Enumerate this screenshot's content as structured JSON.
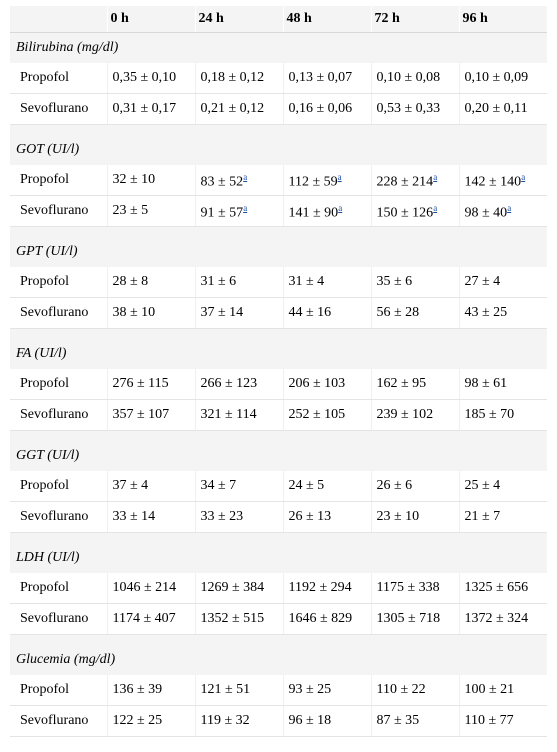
{
  "headers": [
    "",
    "0 h",
    "24 h",
    "48 h",
    "72 h",
    "96 h"
  ],
  "sections": [
    {
      "title": "Bilirubina (mg/dl)",
      "rows": [
        {
          "label": "Propofol",
          "values": [
            "0,35 ± 0,10",
            "0,18 ± 0,12",
            "0,13 ± 0,07",
            "0,10 ± 0,08",
            "0,10 ± 0,09"
          ],
          "notes": [
            "",
            "",
            "",
            "",
            ""
          ]
        },
        {
          "label": "Sevoflurano",
          "values": [
            "0,31 ± 0,17",
            "0,21 ± 0,12",
            "0,16 ± 0,06",
            "0,53 ± 0,33",
            "0,20 ± 0,11"
          ],
          "notes": [
            "",
            "",
            "",
            "",
            ""
          ]
        }
      ]
    },
    {
      "title": "GOT (UI/l)",
      "rows": [
        {
          "label": "Propofol",
          "values": [
            "32 ± 10",
            "83 ± 52",
            "112 ± 59",
            "228 ± 214",
            "142 ± 140"
          ],
          "notes": [
            "",
            "a",
            "a",
            "a",
            "a"
          ]
        },
        {
          "label": "Sevoflurano",
          "values": [
            "23 ± 5",
            "91 ± 57",
            "141 ± 90",
            "150 ± 126",
            "98 ± 40"
          ],
          "notes": [
            "",
            "a",
            "a",
            "a",
            "a"
          ]
        }
      ]
    },
    {
      "title": "GPT (UI/l)",
      "rows": [
        {
          "label": "Propofol",
          "values": [
            "28 ± 8",
            "31 ± 6",
            "31 ± 4",
            "35 ± 6",
            "27 ± 4"
          ],
          "notes": [
            "",
            "",
            "",
            "",
            ""
          ]
        },
        {
          "label": "Sevoflurano",
          "values": [
            "38 ± 10",
            "37 ± 14",
            "44 ± 16",
            "56 ± 28",
            "43 ± 25"
          ],
          "notes": [
            "",
            "",
            "",
            "",
            ""
          ]
        }
      ]
    },
    {
      "title": "FA (UI/l)",
      "rows": [
        {
          "label": "Propofol",
          "values": [
            "276 ± 115",
            "266 ± 123",
            "206 ± 103",
            "162 ± 95",
            "98 ± 61"
          ],
          "notes": [
            "",
            "",
            "",
            "",
            ""
          ]
        },
        {
          "label": "Sevoflurano",
          "values": [
            "357 ± 107",
            "321 ± 114",
            "252 ± 105",
            "239 ± 102",
            "185 ± 70"
          ],
          "notes": [
            "",
            "",
            "",
            "",
            ""
          ]
        }
      ]
    },
    {
      "title": "GGT (UI/l)",
      "rows": [
        {
          "label": "Propofol",
          "values": [
            "37 ± 4",
            "34 ± 7",
            "24 ± 5",
            "26 ± 6",
            "25 ± 4"
          ],
          "notes": [
            "",
            "",
            "",
            "",
            ""
          ]
        },
        {
          "label": "Sevoflurano",
          "values": [
            "33 ± 14",
            "33 ± 23",
            "26 ± 13",
            "23 ± 10",
            "21 ± 7"
          ],
          "notes": [
            "",
            "",
            "",
            "",
            ""
          ]
        }
      ]
    },
    {
      "title": "LDH (UI/l)",
      "rows": [
        {
          "label": "Propofol",
          "values": [
            "1046 ± 214",
            "1269 ± 384",
            "1192 ± 294",
            "1175 ± 338",
            "1325 ± 656"
          ],
          "notes": [
            "",
            "",
            "",
            "",
            ""
          ]
        },
        {
          "label": "Sevoflurano",
          "values": [
            "1174 ± 407",
            "1352 ± 515",
            "1646 ± 829",
            "1305 ± 718",
            "1372 ± 324"
          ],
          "notes": [
            "",
            "",
            "",
            "",
            ""
          ]
        }
      ]
    },
    {
      "title": "Glucemia (mg/dl)",
      "rows": [
        {
          "label": "Propofol",
          "values": [
            "136 ± 39",
            "121 ± 51",
            "93 ± 25",
            "110 ± 22",
            "100 ± 21"
          ],
          "notes": [
            "",
            "",
            "",
            "",
            ""
          ]
        },
        {
          "label": "Sevoflurano",
          "values": [
            "122 ± 25",
            "119 ± 32",
            "96 ± 18",
            "87 ± 35",
            "110 ± 77"
          ],
          "notes": [
            "",
            "",
            "",
            "",
            ""
          ]
        }
      ]
    }
  ]
}
